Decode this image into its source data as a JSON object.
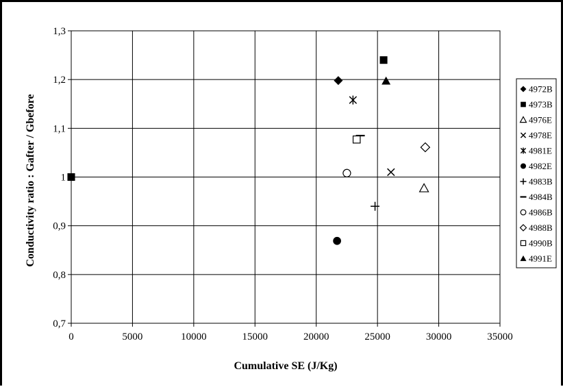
{
  "chart_data": {
    "type": "scatter",
    "title": "",
    "xlabel": "Cumulative SE (J/Kg)",
    "ylabel": "Conductivity ratio : Gafter / Gbefore",
    "xlim": [
      0,
      35000
    ],
    "ylim": [
      0.7,
      1.3
    ],
    "xticks": [
      0,
      5000,
      10000,
      15000,
      20000,
      25000,
      30000,
      35000
    ],
    "xtick_labels": [
      "0",
      "5000",
      "10000",
      "15000",
      "20000",
      "25000",
      "30000",
      "35000"
    ],
    "yticks": [
      0.7,
      0.8,
      0.9,
      1.0,
      1.1,
      1.2,
      1.3
    ],
    "ytick_labels": [
      "0,7",
      "0,8",
      "0,9",
      "1",
      "1,1",
      "1,2",
      "1,3"
    ],
    "grid": true,
    "legend_position": "right",
    "series": [
      {
        "name": "4972B",
        "marker": "diamond-filled",
        "points": [
          [
            21800,
            1.198
          ]
        ]
      },
      {
        "name": "4973B",
        "marker": "square-filled",
        "points": [
          [
            0,
            1.0
          ],
          [
            25500,
            1.24
          ]
        ]
      },
      {
        "name": "4976E",
        "marker": "triangle-open",
        "points": [
          [
            28800,
            0.977
          ]
        ]
      },
      {
        "name": "4978E",
        "marker": "x",
        "points": [
          [
            26100,
            1.01
          ]
        ]
      },
      {
        "name": "4981E",
        "marker": "asterisk",
        "points": [
          [
            23000,
            1.158
          ]
        ]
      },
      {
        "name": "4982E",
        "marker": "circle-filled",
        "points": [
          [
            21700,
            0.869
          ]
        ]
      },
      {
        "name": "4983B",
        "marker": "plus",
        "points": [
          [
            24800,
            0.94
          ]
        ]
      },
      {
        "name": "4984B",
        "marker": "dash",
        "points": [
          [
            23600,
            1.085
          ]
        ]
      },
      {
        "name": "4986B",
        "marker": "circle-open",
        "points": [
          [
            22500,
            1.008
          ]
        ]
      },
      {
        "name": "4988B",
        "marker": "diamond-open",
        "points": [
          [
            28900,
            1.061
          ]
        ]
      },
      {
        "name": "4990B",
        "marker": "square-open",
        "points": [
          [
            23300,
            1.077
          ]
        ]
      },
      {
        "name": "4991E",
        "marker": "triangle-filled",
        "points": [
          [
            25700,
            1.197
          ]
        ]
      }
    ]
  }
}
